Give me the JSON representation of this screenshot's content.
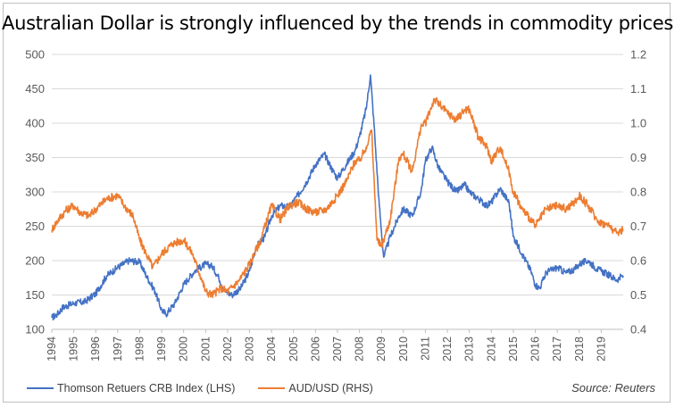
{
  "chart_data": {
    "type": "line",
    "title": "Australian Dollar is strongly influenced by the trends in commodity prices",
    "source": "Source: Reuters",
    "x_ticks": [
      "1994",
      "1995",
      "1996",
      "1997",
      "1998",
      "1999",
      "2000",
      "2001",
      "2002",
      "2003",
      "2004",
      "2005",
      "2006",
      "2007",
      "2008",
      "2009",
      "2010",
      "2011",
      "2012",
      "2013",
      "2014",
      "2015",
      "2016",
      "2017",
      "2018",
      "2019"
    ],
    "y_left": {
      "ticks": [
        "100",
        "150",
        "200",
        "250",
        "300",
        "350",
        "400",
        "450",
        "500"
      ],
      "ylim": [
        100,
        500
      ]
    },
    "y_right": {
      "ticks": [
        "0.4",
        "0.5",
        "0.6",
        "0.7",
        "0.8",
        "0.9",
        "1.0",
        "1.1",
        "1.2"
      ],
      "ylim": [
        0.4,
        1.2
      ]
    },
    "xlim": [
      1994.0,
      2020.0
    ],
    "grid": "horizontal",
    "legend_position": "bottom",
    "series": [
      {
        "name": "Thomson Retuers CRB Index (LHS)",
        "axis": "left",
        "color": "#4472C4",
        "points": [
          [
            1994.0,
            117
          ],
          [
            1994.25,
            122
          ],
          [
            1994.5,
            132
          ],
          [
            1995.0,
            138
          ],
          [
            1995.5,
            140
          ],
          [
            1996.0,
            152
          ],
          [
            1996.5,
            178
          ],
          [
            1997.0,
            190
          ],
          [
            1997.5,
            200
          ],
          [
            1998.0,
            198
          ],
          [
            1998.3,
            178
          ],
          [
            1998.7,
            155
          ],
          [
            1999.0,
            128
          ],
          [
            1999.2,
            122
          ],
          [
            1999.6,
            138
          ],
          [
            2000.0,
            165
          ],
          [
            2000.5,
            185
          ],
          [
            2001.0,
            195
          ],
          [
            2001.3,
            192
          ],
          [
            2001.6,
            175
          ],
          [
            2001.9,
            155
          ],
          [
            2002.2,
            150
          ],
          [
            2002.6,
            160
          ],
          [
            2003.0,
            185
          ],
          [
            2003.3,
            220
          ],
          [
            2003.7,
            235
          ],
          [
            2004.0,
            265
          ],
          [
            2004.4,
            280
          ],
          [
            2004.8,
            278
          ],
          [
            2005.2,
            295
          ],
          [
            2005.6,
            315
          ],
          [
            2006.0,
            340
          ],
          [
            2006.4,
            355
          ],
          [
            2006.8,
            330
          ],
          [
            2007.0,
            320
          ],
          [
            2007.4,
            340
          ],
          [
            2007.8,
            360
          ],
          [
            2008.0,
            380
          ],
          [
            2008.3,
            420
          ],
          [
            2008.5,
            470
          ],
          [
            2008.7,
            380
          ],
          [
            2008.9,
            280
          ],
          [
            2009.1,
            205
          ],
          [
            2009.4,
            235
          ],
          [
            2009.8,
            265
          ],
          [
            2010.0,
            275
          ],
          [
            2010.4,
            265
          ],
          [
            2010.8,
            300
          ],
          [
            2011.0,
            345
          ],
          [
            2011.3,
            365
          ],
          [
            2011.6,
            335
          ],
          [
            2012.0,
            315
          ],
          [
            2012.4,
            300
          ],
          [
            2012.8,
            310
          ],
          [
            2013.0,
            300
          ],
          [
            2013.4,
            290
          ],
          [
            2013.8,
            280
          ],
          [
            2014.0,
            285
          ],
          [
            2014.4,
            305
          ],
          [
            2014.8,
            285
          ],
          [
            2015.0,
            235
          ],
          [
            2015.4,
            210
          ],
          [
            2015.8,
            185
          ],
          [
            2016.0,
            165
          ],
          [
            2016.2,
            160
          ],
          [
            2016.5,
            183
          ],
          [
            2017.0,
            190
          ],
          [
            2017.4,
            182
          ],
          [
            2017.8,
            188
          ],
          [
            2018.0,
            195
          ],
          [
            2018.4,
            200
          ],
          [
            2018.8,
            188
          ],
          [
            2019.0,
            185
          ],
          [
            2019.4,
            178
          ],
          [
            2019.7,
            172
          ],
          [
            2020.0,
            178
          ]
        ]
      },
      {
        "name": "AUD/USD (RHS)",
        "axis": "right",
        "color": "#ED7D31",
        "points": [
          [
            1994.0,
            0.69
          ],
          [
            1994.3,
            0.72
          ],
          [
            1994.7,
            0.75
          ],
          [
            1995.0,
            0.76
          ],
          [
            1995.3,
            0.74
          ],
          [
            1995.7,
            0.73
          ],
          [
            1996.0,
            0.75
          ],
          [
            1996.5,
            0.78
          ],
          [
            1997.0,
            0.79
          ],
          [
            1997.3,
            0.76
          ],
          [
            1997.7,
            0.73
          ],
          [
            1998.0,
            0.66
          ],
          [
            1998.3,
            0.62
          ],
          [
            1998.6,
            0.58
          ],
          [
            1999.0,
            0.62
          ],
          [
            1999.5,
            0.65
          ],
          [
            2000.0,
            0.66
          ],
          [
            2000.4,
            0.62
          ],
          [
            2000.8,
            0.55
          ],
          [
            2001.0,
            0.51
          ],
          [
            2001.3,
            0.5
          ],
          [
            2001.7,
            0.52
          ],
          [
            2002.0,
            0.51
          ],
          [
            2002.5,
            0.54
          ],
          [
            2003.0,
            0.59
          ],
          [
            2003.5,
            0.66
          ],
          [
            2004.0,
            0.76
          ],
          [
            2004.4,
            0.72
          ],
          [
            2004.8,
            0.76
          ],
          [
            2005.2,
            0.77
          ],
          [
            2005.6,
            0.75
          ],
          [
            2006.0,
            0.74
          ],
          [
            2006.5,
            0.75
          ],
          [
            2007.0,
            0.79
          ],
          [
            2007.4,
            0.83
          ],
          [
            2007.8,
            0.89
          ],
          [
            2008.0,
            0.89
          ],
          [
            2008.3,
            0.93
          ],
          [
            2008.55,
            0.98
          ],
          [
            2008.8,
            0.66
          ],
          [
            2009.0,
            0.64
          ],
          [
            2009.4,
            0.72
          ],
          [
            2009.8,
            0.9
          ],
          [
            2010.0,
            0.91
          ],
          [
            2010.4,
            0.86
          ],
          [
            2010.8,
            0.99
          ],
          [
            2011.0,
            1.0
          ],
          [
            2011.4,
            1.07
          ],
          [
            2011.7,
            1.05
          ],
          [
            2012.0,
            1.03
          ],
          [
            2012.4,
            1.01
          ],
          [
            2012.8,
            1.04
          ],
          [
            2013.0,
            1.04
          ],
          [
            2013.4,
            0.96
          ],
          [
            2013.8,
            0.93
          ],
          [
            2014.0,
            0.89
          ],
          [
            2014.4,
            0.93
          ],
          [
            2014.8,
            0.86
          ],
          [
            2015.0,
            0.8
          ],
          [
            2015.4,
            0.75
          ],
          [
            2015.8,
            0.72
          ],
          [
            2016.0,
            0.7
          ],
          [
            2016.5,
            0.75
          ],
          [
            2017.0,
            0.76
          ],
          [
            2017.4,
            0.75
          ],
          [
            2017.8,
            0.77
          ],
          [
            2018.0,
            0.79
          ],
          [
            2018.4,
            0.76
          ],
          [
            2018.8,
            0.72
          ],
          [
            2019.0,
            0.71
          ],
          [
            2019.4,
            0.7
          ],
          [
            2019.7,
            0.68
          ],
          [
            2020.0,
            0.69
          ]
        ]
      }
    ]
  }
}
